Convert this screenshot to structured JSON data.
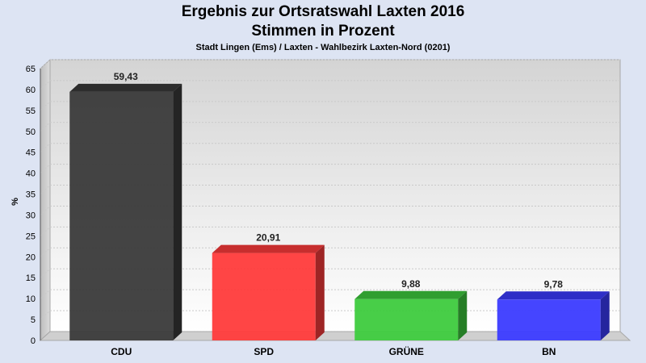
{
  "chart_data": {
    "type": "bar",
    "title": "Ergebnis zur Ortsratswahl Laxten 2016",
    "subtitle": "Stimmen in Prozent",
    "caption": "Stadt Lingen (Ems) / Laxten - Wahlbezirk Laxten-Nord (0201)",
    "ylabel": "%",
    "ylim": [
      0,
      65
    ],
    "yticks": [
      0,
      5,
      10,
      15,
      20,
      25,
      30,
      35,
      40,
      45,
      50,
      55,
      60,
      65
    ],
    "grid": true,
    "categories": [
      "CDU",
      "SPD",
      "GRÜNE",
      "BN"
    ],
    "values": [
      59.43,
      20.91,
      9.88,
      9.78
    ],
    "value_labels": [
      "59,43",
      "20,91",
      "9,88",
      "9,78"
    ],
    "colors": [
      "#3a3a3a",
      "#ff3b3b",
      "#3ecb3e",
      "#3b3bff"
    ]
  }
}
